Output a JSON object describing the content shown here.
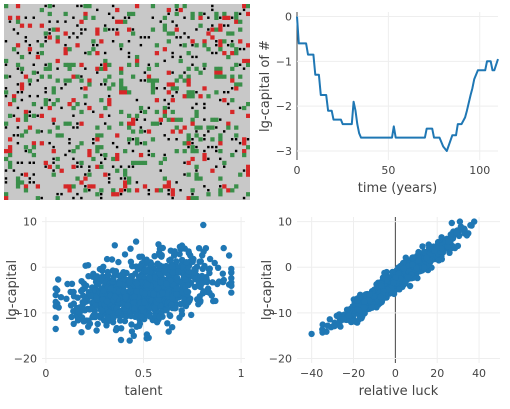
{
  "colors": {
    "series": "#1f77b4",
    "grid_bg": "#c8c8c8",
    "grid_red": "#d62728",
    "grid_green": "#3a8f4a",
    "grid_black": "#000000",
    "gridline": "#eeeeee",
    "zeroline": "#444444"
  },
  "grid_panel": {
    "type": "heatmap",
    "description_free": true,
    "cols": 62,
    "rows": 50,
    "cell_seed": 20251
  },
  "chart_data": [
    {
      "id": "capital-over-time",
      "type": "line",
      "xlabel": "time (years)",
      "ylabel": "lg-capital of #",
      "xlim": [
        0,
        110
      ],
      "ylim": [
        -3.2,
        0.1
      ],
      "xticks": [
        0,
        50,
        100
      ],
      "yticks": [
        0,
        -1,
        -2,
        -3
      ],
      "x": [
        0,
        1,
        2,
        5,
        6,
        9,
        10,
        12,
        13,
        16,
        17,
        19,
        20,
        24,
        25,
        30,
        31,
        32,
        33,
        34,
        35,
        36,
        38,
        40,
        45,
        50,
        52,
        53,
        54,
        56,
        57,
        58,
        60,
        65,
        70,
        71,
        74,
        75,
        78,
        80,
        82,
        85,
        86,
        87,
        88,
        90,
        92,
        93,
        95,
        96,
        97,
        99,
        100,
        103,
        104,
        106,
        107,
        108,
        110
      ],
      "y": [
        0,
        -0.6,
        -0.6,
        -0.6,
        -0.85,
        -0.85,
        -1.3,
        -1.3,
        -1.75,
        -1.75,
        -2.1,
        -2.1,
        -2.3,
        -2.3,
        -2.4,
        -2.4,
        -1.9,
        -2.1,
        -2.4,
        -2.6,
        -2.7,
        -2.7,
        -2.7,
        -2.7,
        -2.7,
        -2.7,
        -2.7,
        -2.45,
        -2.7,
        -2.7,
        -2.7,
        -2.7,
        -2.7,
        -2.7,
        -2.7,
        -2.5,
        -2.5,
        -2.7,
        -2.7,
        -2.9,
        -3.0,
        -2.65,
        -2.65,
        -2.65,
        -2.4,
        -2.4,
        -2.25,
        -2.1,
        -1.75,
        -1.6,
        -1.4,
        -1.2,
        -1.2,
        -1.2,
        -1.0,
        -1.0,
        -1.2,
        -1.2,
        -0.95
      ]
    },
    {
      "id": "capital-vs-talent",
      "type": "scatter",
      "xlabel": "talent",
      "ylabel": "lg-capital",
      "xlim": [
        -0.02,
        1.02
      ],
      "ylim": [
        -21,
        11
      ],
      "xticks": [
        0,
        0.5,
        1
      ],
      "xtick_labels": [
        "0",
        "0.5",
        "1"
      ],
      "yticks": [
        10,
        0,
        -10,
        -20
      ],
      "ytick_labels": [
        "10",
        "0",
        "−10",
        "−20"
      ],
      "n_points": 1000,
      "point_seed": 7,
      "mean_x": 0.5,
      "sd_x": 0.17,
      "slope": 9,
      "noise_sd": 3.4
    },
    {
      "id": "capital-vs-luck",
      "type": "scatter",
      "xlabel": "relative luck",
      "ylabel": "lg-capital",
      "xlim": [
        -47,
        50
      ],
      "ylim": [
        -21,
        11
      ],
      "xticks": [
        -40,
        -20,
        0,
        20,
        40
      ],
      "xtick_labels": [
        "−40",
        "−20",
        "0",
        "20",
        "40"
      ],
      "yticks": [
        10,
        0,
        -10,
        -20
      ],
      "ytick_labels": [
        "10",
        "0",
        "−10",
        "−20"
      ],
      "n_points": 1000,
      "point_seed": 11,
      "slope": 0.33,
      "intercept": -3,
      "sd_x": 13,
      "noise_sd": 1.1
    }
  ]
}
